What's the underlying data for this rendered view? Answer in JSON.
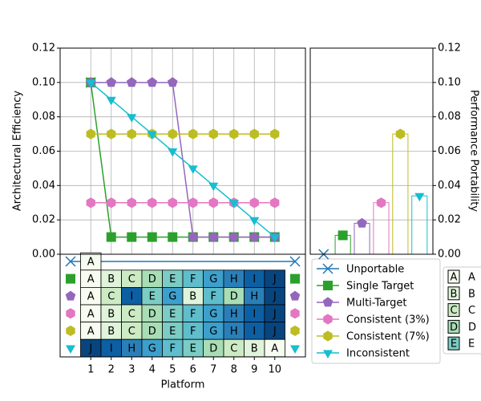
{
  "chart_data": {
    "type": "line",
    "x_label": "Platform",
    "y_label": "Architectural Efficiency",
    "y2_label": "Performance Portability",
    "x": [
      1,
      2,
      3,
      4,
      5,
      6,
      7,
      8,
      9,
      10
    ],
    "xlim": [
      -0.5,
      11.5
    ],
    "xticks": [
      1,
      2,
      3,
      4,
      5,
      6,
      7,
      8,
      9,
      10
    ],
    "ylim": [
      0,
      0.12
    ],
    "yticks": [
      {
        "value": 0,
        "label": "0.00"
      },
      {
        "value": 0.02,
        "label": "0.02"
      },
      {
        "value": 0.04,
        "label": "0.04"
      },
      {
        "value": 0.06,
        "label": "0.06"
      },
      {
        "value": 0.08,
        "label": "0.08"
      },
      {
        "value": 0.1,
        "label": "0.10"
      },
      {
        "value": 0.12,
        "label": "0.12"
      }
    ],
    "grid": true,
    "series": [
      {
        "name": "Unportable",
        "color": "#1f77b4",
        "marker": "x",
        "values": [
          0.1,
          null,
          null,
          null,
          null,
          null,
          null,
          null,
          null,
          null
        ],
        "portability": 0
      },
      {
        "name": "Single Target",
        "color": "#2ca02c",
        "marker": "square",
        "values": [
          0.1,
          0.01,
          0.01,
          0.01,
          0.01,
          0.01,
          0.01,
          0.01,
          0.01,
          0.01
        ],
        "portability": 0.011
      },
      {
        "name": "Multi-Target",
        "color": "#9467bd",
        "marker": "pentagon",
        "values": [
          0.1,
          0.1,
          0.1,
          0.1,
          0.1,
          0.01,
          0.01,
          0.01,
          0.01,
          0.01
        ],
        "portability": 0.018
      },
      {
        "name": "Consistent (3%)",
        "color": "#e377c2",
        "marker": "hexagon",
        "values": [
          0.03,
          0.03,
          0.03,
          0.03,
          0.03,
          0.03,
          0.03,
          0.03,
          0.03,
          0.03
        ],
        "portability": 0.03
      },
      {
        "name": "Consistent (7%)",
        "color": "#bcbd22",
        "marker": "hexagon",
        "values": [
          0.07,
          0.07,
          0.07,
          0.07,
          0.07,
          0.07,
          0.07,
          0.07,
          0.07,
          0.07
        ],
        "portability": 0.07
      },
      {
        "name": "Inconsistent",
        "color": "#17becf",
        "marker": "triangle-down",
        "values": [
          0.1,
          0.09,
          0.08,
          0.07,
          0.06,
          0.05,
          0.04,
          0.03,
          0.02,
          0.01
        ],
        "portability": 0.034
      }
    ],
    "table": {
      "rows": [
        [
          "A",
          null,
          null,
          null,
          null,
          null,
          null,
          null,
          null,
          null
        ],
        [
          "A",
          "B",
          "C",
          "D",
          "E",
          "F",
          "G",
          "H",
          "I",
          "J"
        ],
        [
          "A",
          "C",
          "I",
          "E",
          "G",
          "B",
          "F",
          "D",
          "H",
          "J"
        ],
        [
          "A",
          "B",
          "C",
          "D",
          "E",
          "F",
          "G",
          "H",
          "I",
          "J"
        ],
        [
          "A",
          "B",
          "C",
          "D",
          "E",
          "F",
          "G",
          "H",
          "I",
          "J"
        ],
        [
          "J",
          "I",
          "H",
          "G",
          "F",
          "E",
          "D",
          "C",
          "B",
          "A"
        ]
      ]
    },
    "letter_colors": {
      "A": "#f7fcf0",
      "B": "#e0f3db",
      "C": "#ccebc5",
      "D": "#a8ddb5",
      "E": "#7bccc4",
      "F": "#5fbdcc",
      "G": "#3d9fcc",
      "H": "#2a7fb8",
      "I": "#0c5fa3",
      "J": "#08457e"
    },
    "letter_legend": [
      "A",
      "B",
      "C",
      "D",
      "E"
    ]
  }
}
